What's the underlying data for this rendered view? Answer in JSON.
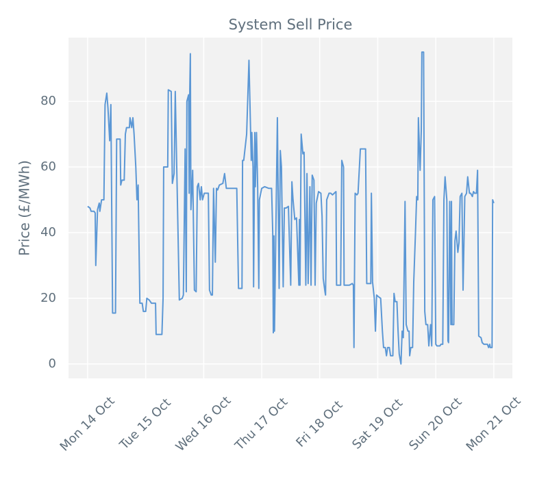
{
  "chart_data": {
    "type": "line",
    "title": "System Sell Price",
    "y_label": "Price (£/MWh)",
    "color": "#5b97d5",
    "grid": true,
    "xlim": [
      -0.33,
      7.32
    ],
    "ylim": [
      -4.4,
      99.4
    ],
    "xticks": [
      {
        "value": 0,
        "label": "Mon 14 Oct"
      },
      {
        "value": 1,
        "label": "Tue 15 Oct"
      },
      {
        "value": 2,
        "label": "Wed 16 Oct"
      },
      {
        "value": 3,
        "label": "Thu 17 Oct"
      },
      {
        "value": 4,
        "label": "Fri 18 Oct"
      },
      {
        "value": 5,
        "label": "Sat 19 Oct"
      },
      {
        "value": 6,
        "label": "Sun 20 Oct"
      },
      {
        "value": 7,
        "label": "Mon 21 Oct"
      }
    ],
    "yticks": [
      0,
      20,
      40,
      60,
      80
    ],
    "x": [
      0,
      0.04,
      0.06,
      0.11,
      0.13,
      0.14,
      0.17,
      0.2,
      0.21,
      0.24,
      0.28,
      0.3,
      0.33,
      0.35,
      0.38,
      0.4,
      0.43,
      0.48,
      0.5,
      0.56,
      0.57,
      0.59,
      0.63,
      0.65,
      0.67,
      0.72,
      0.73,
      0.76,
      0.78,
      0.8,
      0.83,
      0.85,
      0.87,
      0.9,
      0.94,
      0.96,
      1.0,
      1.02,
      1.06,
      1.1,
      1.17,
      1.18,
      1.28,
      1.3,
      1.31,
      1.38,
      1.39,
      1.44,
      1.46,
      1.49,
      1.51,
      1.58,
      1.63,
      1.65,
      1.68,
      1.7,
      1.71,
      1.74,
      1.75,
      1.76,
      1.77,
      1.78,
      1.81,
      1.84,
      1.87,
      1.89,
      1.91,
      1.94,
      1.96,
      1.98,
      2.01,
      2.03,
      2.08,
      2.1,
      2.13,
      2.15,
      2.17,
      2.2,
      2.22,
      2.24,
      2.27,
      2.33,
      2.36,
      2.39,
      2.57,
      2.6,
      2.66,
      2.67,
      2.69,
      2.74,
      2.78,
      2.82,
      2.83,
      2.85,
      2.86,
      2.88,
      2.89,
      2.91,
      2.93,
      2.95,
      2.96,
      3.0,
      3.05,
      3.12,
      3.17,
      3.19,
      3.2,
      3.21,
      3.22,
      3.25,
      3.27,
      3.3,
      3.32,
      3.34,
      3.37,
      3.39,
      3.42,
      3.46,
      3.5,
      3.52,
      3.54,
      3.57,
      3.6,
      3.64,
      3.65,
      3.66,
      3.68,
      3.71,
      3.73,
      3.76,
      3.78,
      3.8,
      3.83,
      3.85,
      3.87,
      3.9,
      3.92,
      3.94,
      3.98,
      4.02,
      4.04,
      4.06,
      4.09,
      4.1,
      4.12,
      4.16,
      4.19,
      4.22,
      4.25,
      4.28,
      4.29,
      4.36,
      4.38,
      4.41,
      4.42,
      4.45,
      4.51,
      4.56,
      4.58,
      4.59,
      4.61,
      4.64,
      4.66,
      4.7,
      4.75,
      4.79,
      4.81,
      4.88,
      4.89,
      4.91,
      4.94,
      4.96,
      4.98,
      5.01,
      5.05,
      5.08,
      5.1,
      5.13,
      5.15,
      5.17,
      5.2,
      5.22,
      5.26,
      5.28,
      5.3,
      5.33,
      5.35,
      5.37,
      5.4,
      5.42,
      5.44,
      5.47,
      5.49,
      5.52,
      5.54,
      5.55,
      5.57,
      5.6,
      5.62,
      5.65,
      5.67,
      5.69,
      5.7,
      5.73,
      5.75,
      5.76,
      5.79,
      5.81,
      5.83,
      5.86,
      5.88,
      5.91,
      5.93,
      5.95,
      5.98,
      6.0,
      6.02,
      6.07,
      6.09,
      6.12,
      6.14,
      6.16,
      6.19,
      6.21,
      6.22,
      6.24,
      6.26,
      6.27,
      6.28,
      6.31,
      6.33,
      6.35,
      6.38,
      6.4,
      6.42,
      6.45,
      6.47,
      6.5,
      6.53,
      6.55,
      6.58,
      6.6,
      6.63,
      6.65,
      6.67,
      6.7,
      6.72,
      6.74,
      6.78,
      6.8,
      6.83,
      6.85,
      6.89,
      6.91,
      6.93,
      6.94,
      6.97,
      6.98,
      7.0
    ],
    "values": [
      48,
      47.5,
      46.5,
      46.5,
      46,
      30,
      47,
      49,
      46.5,
      50,
      50,
      79,
      82.5,
      78,
      68,
      79,
      15.5,
      15.5,
      68.5,
      68.5,
      54.5,
      56,
      56,
      70,
      72,
      72,
      75,
      72,
      75,
      70,
      60,
      50,
      54.5,
      18.5,
      18.5,
      16,
      16,
      20,
      19.5,
      18.5,
      18.5,
      9,
      9,
      20,
      60,
      60,
      83.5,
      83,
      55,
      58,
      83,
      19.5,
      20,
      21,
      65.5,
      22,
      80,
      82,
      52,
      83.5,
      94.5,
      47,
      59,
      22.5,
      22,
      54,
      55,
      50,
      54,
      50,
      52,
      52,
      52,
      22.5,
      21,
      21,
      53.5,
      31,
      53.5,
      53,
      54.5,
      55,
      58,
      53.5,
      53.5,
      23,
      23,
      62,
      62,
      70,
      92.5,
      62,
      70.5,
      60,
      23.5,
      70.5,
      54,
      70.5,
      54,
      23,
      50,
      53.5,
      54,
      53.5,
      53.5,
      40,
      9.5,
      39,
      10,
      49,
      75,
      23,
      65,
      60,
      23.5,
      47.5,
      47.5,
      48,
      24,
      55.5,
      50,
      44,
      44.5,
      24,
      44,
      24,
      70,
      64,
      64.5,
      24,
      58,
      24.5,
      54,
      24,
      57.5,
      56,
      24,
      49,
      52.5,
      52,
      45,
      26,
      22,
      21,
      50,
      52,
      52,
      51.5,
      52,
      52.5,
      24,
      24,
      62,
      60,
      24,
      24,
      24,
      24.5,
      24,
      5,
      52,
      51.5,
      52,
      65.5,
      65.5,
      65.5,
      24.5,
      24.5,
      52,
      25,
      20,
      10,
      21,
      20.5,
      20,
      10,
      5,
      5,
      2.5,
      5,
      5,
      2.5,
      2.5,
      21.5,
      19,
      19,
      10,
      3,
      0,
      10,
      8,
      49.5,
      12,
      10,
      10,
      2.5,
      5,
      5,
      25,
      40,
      51,
      50,
      75,
      59,
      71,
      95,
      95,
      16,
      12,
      12,
      5.5,
      12,
      5.5,
      50,
      51,
      6,
      5.5,
      5.5,
      6,
      6,
      50,
      57,
      50,
      7,
      6.5,
      49.5,
      12,
      49.5,
      12,
      12,
      37.5,
      40.5,
      34,
      37,
      51,
      52,
      22.5,
      51,
      52,
      57,
      52,
      52,
      51,
      52.5,
      52,
      52,
      59,
      8.5,
      8,
      6.5,
      6,
      6,
      6,
      5,
      6,
      5,
      5,
      50,
      49
    ]
  }
}
